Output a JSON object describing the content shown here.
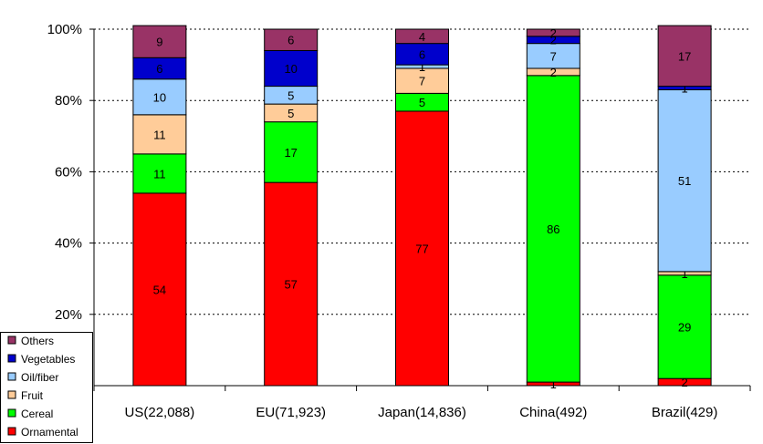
{
  "chart_data": {
    "type": "bar",
    "stacked": true,
    "percent_stacked": true,
    "categories": [
      "US(22,088)",
      "EU(71,923)",
      "Japan(14,836)",
      "China(492)",
      "Brazil(429)"
    ],
    "series": [
      {
        "name": "Ornamental",
        "color": "#ff0000",
        "values": [
          54,
          57,
          77,
          1,
          2
        ]
      },
      {
        "name": "Cereal",
        "color": "#00ff00",
        "values": [
          11,
          17,
          5,
          86,
          29
        ]
      },
      {
        "name": "Fruit",
        "color": "#ffcc99",
        "values": [
          11,
          5,
          7,
          2,
          1
        ]
      },
      {
        "name": "Oil/fiber",
        "color": "#99ccff",
        "values": [
          10,
          5,
          1,
          7,
          51
        ]
      },
      {
        "name": "Vegetables",
        "color": "#0000cc",
        "values": [
          6,
          10,
          6,
          2,
          1
        ]
      },
      {
        "name": "Others",
        "color": "#993366",
        "values": [
          9,
          6,
          4,
          2,
          17
        ]
      }
    ],
    "yticks": [
      "100%",
      "80%",
      "60%",
      "40%",
      "20%"
    ],
    "ylim": [
      0,
      100
    ],
    "grid": "horizontal dashed",
    "legend": "bottom-left"
  }
}
